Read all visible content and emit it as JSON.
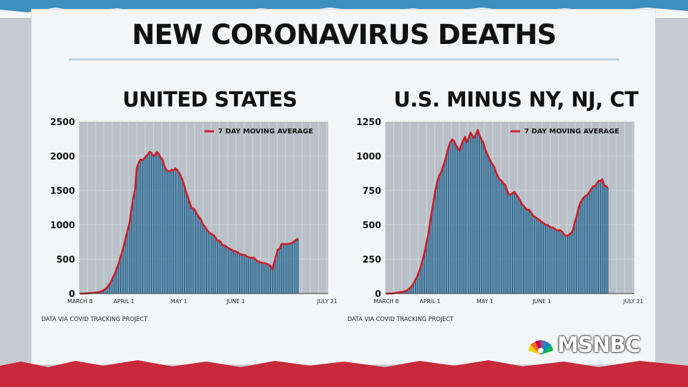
{
  "headline": "NEW CORONAVIRUS DEATHS",
  "colors": {
    "bars": "#2c6a92",
    "average": "#c8202a",
    "band": "#c82a3c",
    "plot_bg": "#b9c0c8"
  },
  "logo": {
    "text": "MSNBC",
    "icon": "peacock-icon"
  },
  "chart_data": [
    {
      "type": "bar",
      "title": "UNITED STATES",
      "source": "DATA VIA COVID TRACKING PROJECT",
      "legend": {
        "label": "7 DAY MOVING AVERAGE",
        "placement": "top-right"
      },
      "ylim": [
        0,
        2500
      ],
      "yticks": [
        "2500",
        "2000",
        "1500",
        "1000",
        "500",
        "0"
      ],
      "xticks": [
        {
          "label": "MARCH 8",
          "day": 0
        },
        {
          "label": "APRIL 1",
          "day": 24
        },
        {
          "label": "MAY 1",
          "day": 54
        },
        {
          "label": "JUNE 1",
          "day": 85
        },
        {
          "label": "JULY 21",
          "day": 135
        }
      ],
      "bars_daily": [
        0,
        0,
        0,
        0,
        2,
        5,
        7,
        8,
        12,
        15,
        18,
        25,
        35,
        50,
        70,
        95,
        135,
        170,
        240,
        290,
        360,
        430,
        520,
        610,
        700,
        820,
        920,
        1020,
        1210,
        1380,
        1500,
        1820,
        1900,
        1950,
        1940,
        1960,
        2000,
        2020,
        2060,
        2050,
        2000,
        2020,
        2060,
        2030,
        1980,
        1950,
        1860,
        1800,
        1780,
        1780,
        1800,
        1790,
        1820,
        1800,
        1760,
        1710,
        1650,
        1560,
        1470,
        1390,
        1310,
        1240,
        1240,
        1200,
        1150,
        1110,
        1080,
        1010,
        980,
        940,
        900,
        880,
        860,
        850,
        810,
        770,
        770,
        740,
        700,
        700,
        680,
        660,
        650,
        630,
        620,
        610,
        600,
        580,
        570,
        560,
        560,
        540,
        530,
        520,
        520,
        520,
        490,
        470,
        460,
        450,
        440,
        440,
        430,
        420,
        400,
        350,
        450,
        540,
        640,
        650,
        720,
        720,
        720,
        720,
        720,
        730,
        740,
        760,
        780,
        800
      ],
      "series": [
        {
          "name": "7 DAY MOVING AVERAGE",
          "values": [
            0,
            0,
            0,
            0,
            2,
            5,
            7,
            8,
            12,
            15,
            18,
            25,
            35,
            50,
            70,
            95,
            135,
            170,
            240,
            290,
            360,
            430,
            520,
            610,
            700,
            820,
            920,
            1020,
            1210,
            1380,
            1500,
            1820,
            1900,
            1950,
            1940,
            1960,
            2000,
            2020,
            2060,
            2050,
            2000,
            2020,
            2060,
            2030,
            1980,
            1950,
            1860,
            1800,
            1780,
            1780,
            1800,
            1790,
            1820,
            1800,
            1760,
            1710,
            1650,
            1560,
            1470,
            1390,
            1310,
            1240,
            1240,
            1200,
            1150,
            1110,
            1080,
            1010,
            980,
            940,
            900,
            880,
            860,
            850,
            810,
            770,
            770,
            740,
            700,
            700,
            680,
            660,
            650,
            630,
            620,
            610,
            600,
            580,
            570,
            560,
            560,
            540,
            530,
            520,
            520,
            520,
            490,
            470,
            460,
            450,
            440,
            440,
            430,
            420,
            400,
            350,
            450,
            540,
            640,
            650,
            720,
            720,
            720,
            720,
            720,
            730,
            740,
            760,
            780,
            800
          ]
        }
      ]
    },
    {
      "type": "bar",
      "title": "U.S. MINUS NY, NJ, CT",
      "source": "DATA VIA COVID TRACKING PROJECT",
      "legend": {
        "label": "7 DAY MOVING AVERAGE",
        "placement": "top-right"
      },
      "ylim": [
        0,
        1250
      ],
      "yticks": [
        "1250",
        "1000",
        "750",
        "500",
        "250",
        "0"
      ],
      "xticks": [
        {
          "label": "MARCH 8",
          "day": 0
        },
        {
          "label": "APRIL 1",
          "day": 24
        },
        {
          "label": "MAY 1",
          "day": 54
        },
        {
          "label": "JUNE 1",
          "day": 85
        },
        {
          "label": "JULY 21",
          "day": 135
        }
      ],
      "bars_daily": [
        0,
        0,
        0,
        0,
        2,
        4,
        6,
        8,
        10,
        12,
        15,
        20,
        28,
        40,
        55,
        75,
        100,
        125,
        160,
        200,
        250,
        300,
        370,
        430,
        520,
        600,
        680,
        760,
        820,
        860,
        880,
        920,
        960,
        1010,
        1060,
        1100,
        1120,
        1110,
        1080,
        1060,
        1040,
        1080,
        1110,
        1140,
        1100,
        1130,
        1170,
        1150,
        1130,
        1160,
        1190,
        1150,
        1120,
        1100,
        1050,
        1020,
        990,
        960,
        940,
        920,
        880,
        850,
        830,
        820,
        800,
        790,
        750,
        720,
        720,
        730,
        740,
        720,
        700,
        680,
        650,
        640,
        620,
        610,
        610,
        590,
        570,
        560,
        550,
        540,
        530,
        520,
        510,
        500,
        500,
        490,
        480,
        480,
        470,
        460,
        460,
        460,
        450,
        430,
        420,
        420,
        430,
        440,
        460,
        520,
        560,
        620,
        660,
        680,
        700,
        710,
        720,
        740,
        760,
        780,
        780,
        800,
        820,
        820,
        830,
        790,
        780,
        770
      ],
      "series": [
        {
          "name": "7 DAY MOVING AVERAGE",
          "values": [
            0,
            0,
            0,
            0,
            2,
            4,
            6,
            8,
            10,
            12,
            15,
            20,
            28,
            40,
            55,
            75,
            100,
            125,
            160,
            200,
            250,
            300,
            370,
            430,
            520,
            600,
            680,
            760,
            820,
            860,
            880,
            920,
            960,
            1010,
            1060,
            1100,
            1120,
            1110,
            1080,
            1060,
            1040,
            1080,
            1110,
            1140,
            1100,
            1130,
            1170,
            1150,
            1130,
            1160,
            1190,
            1150,
            1120,
            1100,
            1050,
            1020,
            990,
            960,
            940,
            920,
            880,
            850,
            830,
            820,
            800,
            790,
            750,
            720,
            720,
            730,
            740,
            720,
            700,
            680,
            650,
            640,
            620,
            610,
            610,
            590,
            570,
            560,
            550,
            540,
            530,
            520,
            510,
            500,
            500,
            490,
            480,
            480,
            470,
            460,
            460,
            460,
            450,
            430,
            420,
            420,
            430,
            440,
            460,
            520,
            560,
            620,
            660,
            680,
            700,
            710,
            720,
            740,
            760,
            780,
            780,
            800,
            820,
            820,
            830,
            790,
            780,
            770
          ]
        }
      ]
    }
  ]
}
